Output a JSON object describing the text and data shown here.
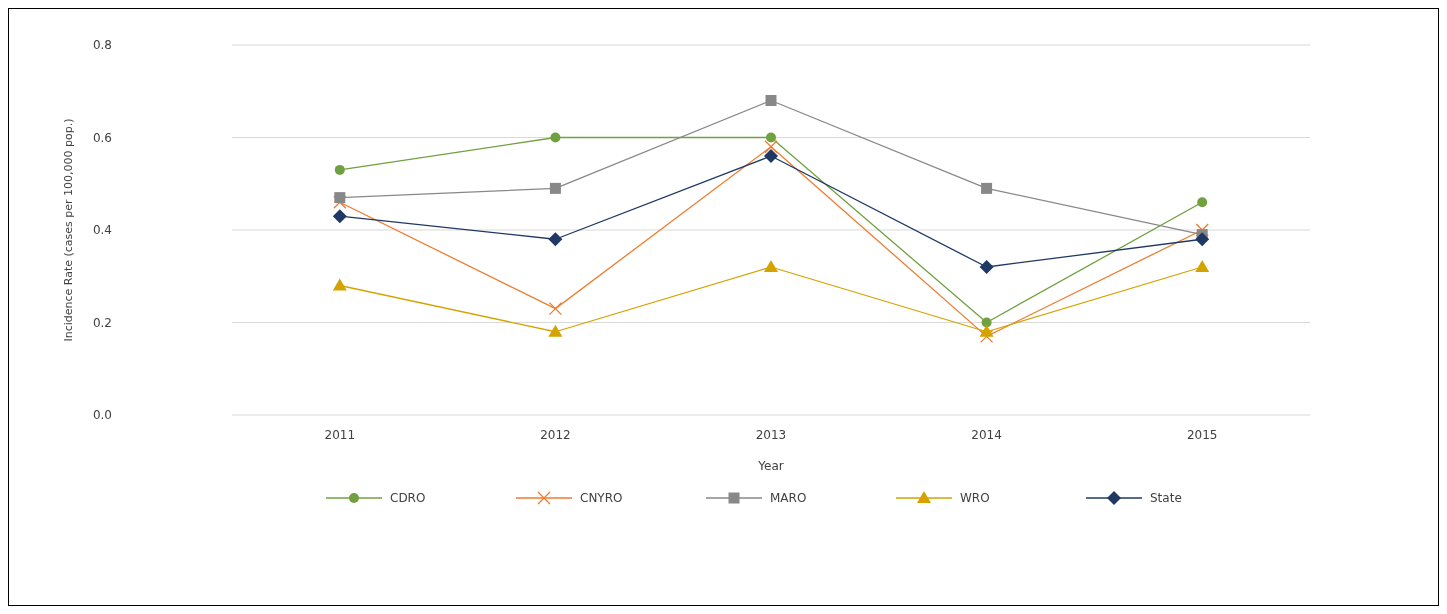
{
  "chart_data": {
    "type": "line",
    "xlabel": "Year",
    "ylabel": "Incidence Rate  (cases per 100,000 pop.)",
    "categories": [
      "2011",
      "2012",
      "2013",
      "2014",
      "2015"
    ],
    "ylim": [
      0,
      0.8
    ],
    "yticks": [
      {
        "value": 0,
        "label": "0.0"
      },
      {
        "value": 0.2,
        "label": "0.2"
      },
      {
        "value": 0.4,
        "label": "0.4"
      },
      {
        "value": 0.6,
        "label": "0.6"
      },
      {
        "value": 0.8,
        "label": "0.8"
      }
    ],
    "grid": "y",
    "legend": "bottom",
    "series": [
      {
        "name": "CDRO",
        "color": "#70a040",
        "marker": "circle",
        "values": [
          0.53,
          0.6,
          0.6,
          0.2,
          0.46
        ]
      },
      {
        "name": "CNYRO",
        "color": "#ed7d31",
        "marker": "cross",
        "values": [
          0.46,
          0.23,
          0.58,
          0.17,
          0.4
        ]
      },
      {
        "name": "MARO",
        "color": "#888888",
        "marker": "square",
        "values": [
          0.47,
          0.49,
          0.68,
          0.49,
          0.39
        ]
      },
      {
        "name": "WRO",
        "color": "#d4a300",
        "marker": "triangle",
        "values": [
          0.28,
          0.18,
          0.32,
          0.18,
          0.32
        ]
      },
      {
        "name": "State",
        "color": "#1f3864",
        "marker": "diamond",
        "values": [
          0.43,
          0.38,
          0.56,
          0.32,
          0.38
        ]
      }
    ]
  }
}
